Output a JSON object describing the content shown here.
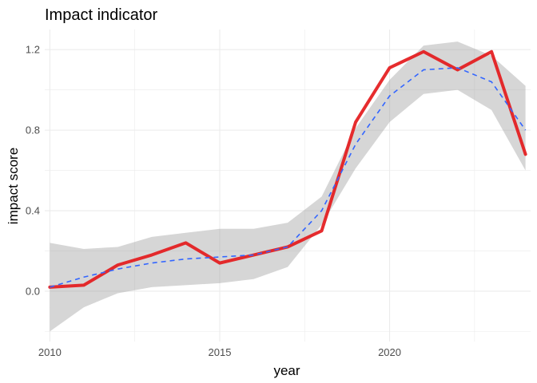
{
  "chart_data": {
    "type": "line",
    "title": "Impact indicator",
    "xlabel": "year",
    "ylabel": "impact score",
    "xlim": [
      2009.85,
      2024.15
    ],
    "ylim": [
      -0.25,
      1.3
    ],
    "x_ticks": [
      2010,
      2015,
      2020
    ],
    "y_ticks": [
      0.0,
      0.4,
      0.8,
      1.2
    ],
    "y_tick_labels": [
      "0.0",
      "0.4",
      "0.8",
      "1.2"
    ],
    "grid": true,
    "legend": "none",
    "series": [
      {
        "kind": "observed",
        "color": "#e41a1c",
        "x": [
          2010,
          2011,
          2012,
          2013,
          2014,
          2015,
          2016,
          2017,
          2018,
          2019,
          2020,
          2021,
          2022,
          2023,
          2024
        ],
        "y": [
          0.02,
          0.03,
          0.13,
          0.18,
          0.24,
          0.14,
          0.18,
          0.22,
          0.3,
          0.84,
          1.11,
          1.19,
          1.1,
          1.19,
          0.68
        ]
      },
      {
        "kind": "smooth",
        "color": "#3366ff",
        "x": [
          2010,
          2011,
          2012,
          2013,
          2014,
          2015,
          2016,
          2017,
          2018,
          2019,
          2020,
          2021,
          2022,
          2023,
          2024
        ],
        "y": [
          0.02,
          0.07,
          0.11,
          0.14,
          0.16,
          0.17,
          0.18,
          0.22,
          0.4,
          0.73,
          0.97,
          1.1,
          1.11,
          1.04,
          0.8
        ],
        "lower": [
          -0.2,
          -0.08,
          -0.01,
          0.02,
          0.03,
          0.04,
          0.06,
          0.12,
          0.33,
          0.61,
          0.84,
          0.98,
          1.0,
          0.9,
          0.6
        ],
        "upper": [
          0.24,
          0.21,
          0.22,
          0.27,
          0.29,
          0.31,
          0.31,
          0.34,
          0.47,
          0.81,
          1.05,
          1.22,
          1.24,
          1.17,
          1.02
        ]
      }
    ],
    "band_color": "#999999"
  }
}
